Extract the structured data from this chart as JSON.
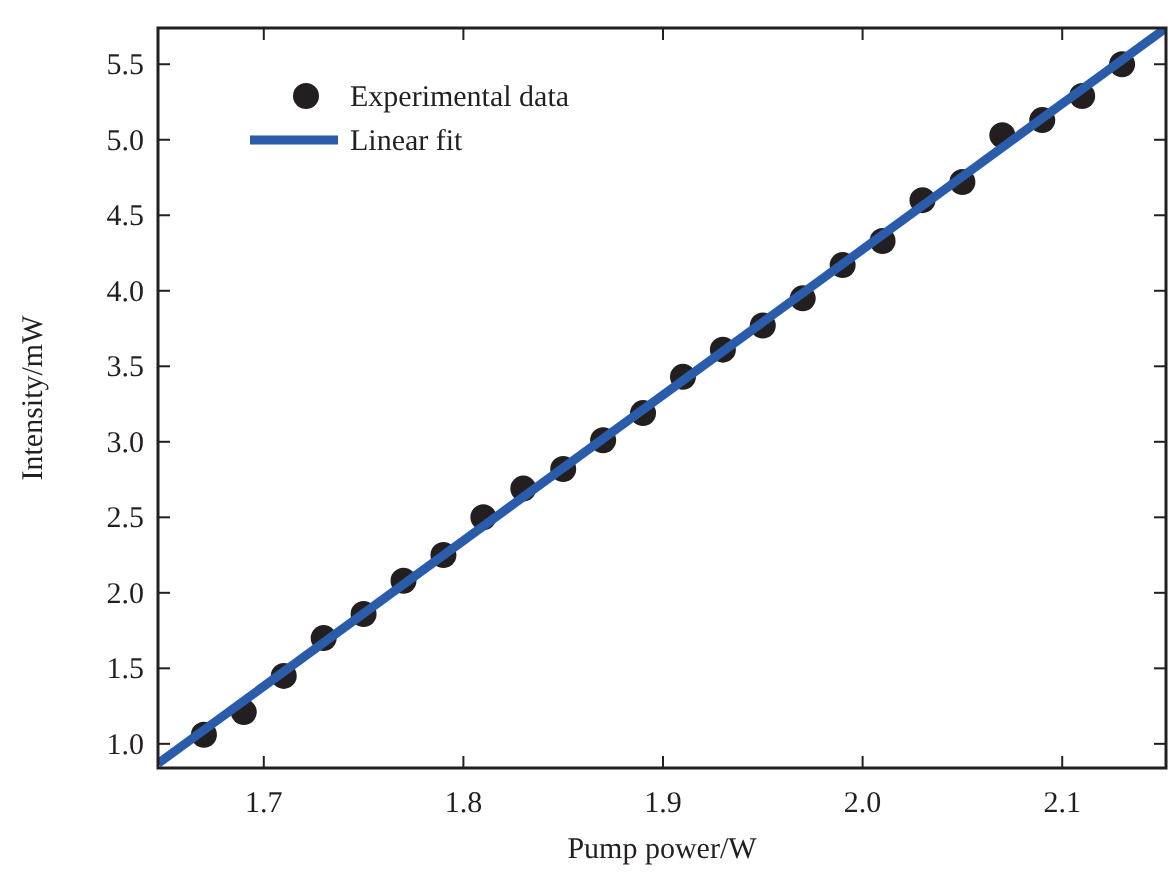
{
  "chart_data": {
    "type": "scatter",
    "xlabel": "Pump power/W",
    "ylabel": "Intensity/mW",
    "xlim": [
      1.647,
      2.152
    ],
    "ylim": [
      0.84,
      5.74
    ],
    "xticks": [
      1.7,
      1.8,
      1.9,
      {
        "value": 2.0,
        "label": "2.0"
      },
      2.1
    ],
    "yticks": [
      {
        "value": 1,
        "label": "1.0"
      },
      1.5,
      {
        "value": 2,
        "label": "2.0"
      },
      2.5,
      {
        "value": 3,
        "label": "3.0"
      },
      3.5,
      {
        "value": 4,
        "label": "4.0"
      },
      4.5,
      {
        "value": 5,
        "label": "5.0"
      },
      5.5
    ],
    "grid": false,
    "legend": "top left",
    "series": [
      {
        "name": "Experimental data",
        "marker": "circle",
        "color": "#231f20",
        "x": [
          1.67,
          1.69,
          1.71,
          1.73,
          1.75,
          1.77,
          1.79,
          1.81,
          1.83,
          1.85,
          1.87,
          1.89,
          1.91,
          1.93,
          1.95,
          1.97,
          1.99,
          2.01,
          2.03,
          2.05,
          2.07,
          2.09,
          2.11,
          2.13
        ],
        "values": [
          1.06,
          1.21,
          1.45,
          1.7,
          1.86,
          2.08,
          2.25,
          2.5,
          2.69,
          2.82,
          3.01,
          3.19,
          3.43,
          3.61,
          3.77,
          3.95,
          4.17,
          4.33,
          4.6,
          4.72,
          5.03,
          5.13,
          5.29,
          5.5
        ]
      },
      {
        "name": "Linear fit",
        "type": "line",
        "marker": "none",
        "line_style": "solid",
        "color": "#2a5caa",
        "x": [
          1.647,
          2.152
        ],
        "values": [
          0.87,
          5.74
        ]
      }
    ]
  }
}
